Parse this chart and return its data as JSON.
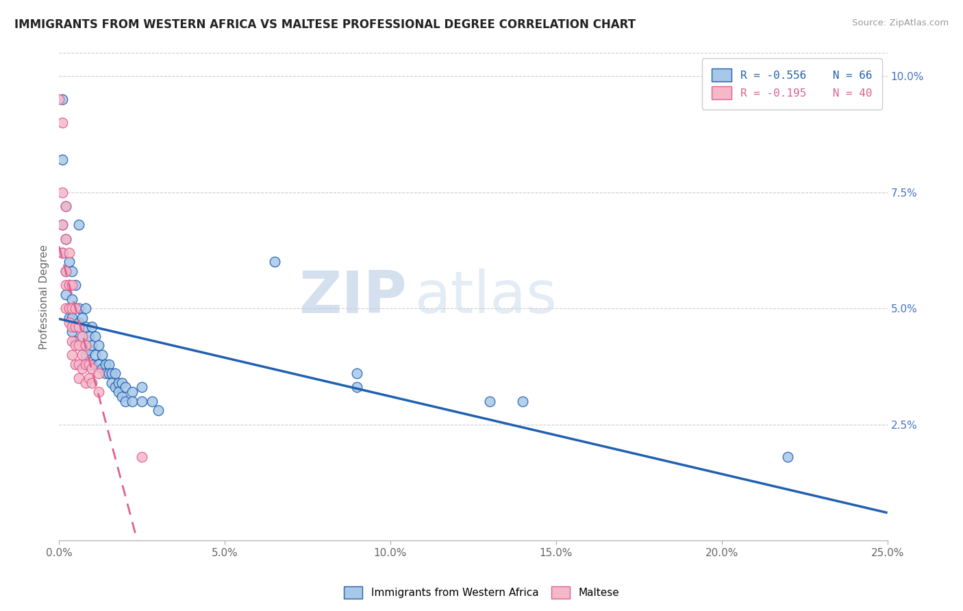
{
  "title": "IMMIGRANTS FROM WESTERN AFRICA VS MALTESE PROFESSIONAL DEGREE CORRELATION CHART",
  "source": "Source: ZipAtlas.com",
  "ylabel": "Professional Degree",
  "xlim": [
    0.0,
    0.25
  ],
  "ylim": [
    0.0,
    0.105
  ],
  "xticks": [
    0.0,
    0.05,
    0.1,
    0.15,
    0.2,
    0.25
  ],
  "xticklabels": [
    "0.0%",
    "5.0%",
    "10.0%",
    "15.0%",
    "20.0%",
    "25.0%"
  ],
  "yticks_right": [
    0.025,
    0.05,
    0.075,
    0.1
  ],
  "yticklabels_right": [
    "2.5%",
    "5.0%",
    "7.5%",
    "10.0%"
  ],
  "legend_blue_label": "Immigrants from Western Africa",
  "legend_pink_label": "Maltese",
  "R_blue": -0.556,
  "N_blue": 66,
  "R_pink": -0.195,
  "N_pink": 40,
  "blue_color": "#a8c8e8",
  "pink_color": "#f4b8c8",
  "blue_line_color": "#2060b0",
  "pink_line_color": "#e06090",
  "background_color": "#ffffff",
  "watermark_zip": "ZIP",
  "watermark_atlas": "atlas",
  "blue_scatter": [
    [
      0.001,
      0.095
    ],
    [
      0.001,
      0.082
    ],
    [
      0.001,
      0.068
    ],
    [
      0.001,
      0.062
    ],
    [
      0.002,
      0.072
    ],
    [
      0.002,
      0.065
    ],
    [
      0.002,
      0.058
    ],
    [
      0.002,
      0.053
    ],
    [
      0.003,
      0.06
    ],
    [
      0.003,
      0.055
    ],
    [
      0.003,
      0.05
    ],
    [
      0.003,
      0.048
    ],
    [
      0.004,
      0.058
    ],
    [
      0.004,
      0.052
    ],
    [
      0.004,
      0.048
    ],
    [
      0.004,
      0.045
    ],
    [
      0.005,
      0.055
    ],
    [
      0.005,
      0.05
    ],
    [
      0.005,
      0.046
    ],
    [
      0.005,
      0.043
    ],
    [
      0.006,
      0.068
    ],
    [
      0.006,
      0.05
    ],
    [
      0.006,
      0.047
    ],
    [
      0.007,
      0.048
    ],
    [
      0.007,
      0.044
    ],
    [
      0.008,
      0.05
    ],
    [
      0.008,
      0.046
    ],
    [
      0.008,
      0.042
    ],
    [
      0.008,
      0.04
    ],
    [
      0.009,
      0.044
    ],
    [
      0.009,
      0.041
    ],
    [
      0.01,
      0.046
    ],
    [
      0.01,
      0.042
    ],
    [
      0.01,
      0.038
    ],
    [
      0.011,
      0.044
    ],
    [
      0.011,
      0.04
    ],
    [
      0.012,
      0.042
    ],
    [
      0.012,
      0.038
    ],
    [
      0.013,
      0.04
    ],
    [
      0.013,
      0.037
    ],
    [
      0.014,
      0.038
    ],
    [
      0.014,
      0.036
    ],
    [
      0.015,
      0.038
    ],
    [
      0.015,
      0.036
    ],
    [
      0.016,
      0.036
    ],
    [
      0.016,
      0.034
    ],
    [
      0.017,
      0.036
    ],
    [
      0.017,
      0.033
    ],
    [
      0.018,
      0.034
    ],
    [
      0.018,
      0.032
    ],
    [
      0.019,
      0.034
    ],
    [
      0.019,
      0.031
    ],
    [
      0.02,
      0.033
    ],
    [
      0.02,
      0.03
    ],
    [
      0.022,
      0.032
    ],
    [
      0.022,
      0.03
    ],
    [
      0.025,
      0.033
    ],
    [
      0.025,
      0.03
    ],
    [
      0.028,
      0.03
    ],
    [
      0.03,
      0.028
    ],
    [
      0.065,
      0.06
    ],
    [
      0.09,
      0.036
    ],
    [
      0.09,
      0.033
    ],
    [
      0.13,
      0.03
    ],
    [
      0.14,
      0.03
    ],
    [
      0.22,
      0.018
    ]
  ],
  "pink_scatter": [
    [
      0.0,
      0.095
    ],
    [
      0.001,
      0.09
    ],
    [
      0.001,
      0.075
    ],
    [
      0.001,
      0.068
    ],
    [
      0.001,
      0.062
    ],
    [
      0.002,
      0.072
    ],
    [
      0.002,
      0.065
    ],
    [
      0.002,
      0.058
    ],
    [
      0.002,
      0.055
    ],
    [
      0.002,
      0.05
    ],
    [
      0.003,
      0.062
    ],
    [
      0.003,
      0.055
    ],
    [
      0.003,
      0.05
    ],
    [
      0.003,
      0.047
    ],
    [
      0.004,
      0.055
    ],
    [
      0.004,
      0.05
    ],
    [
      0.004,
      0.046
    ],
    [
      0.004,
      0.043
    ],
    [
      0.004,
      0.04
    ],
    [
      0.005,
      0.05
    ],
    [
      0.005,
      0.046
    ],
    [
      0.005,
      0.042
    ],
    [
      0.005,
      0.038
    ],
    [
      0.006,
      0.046
    ],
    [
      0.006,
      0.042
    ],
    [
      0.006,
      0.038
    ],
    [
      0.006,
      0.035
    ],
    [
      0.007,
      0.044
    ],
    [
      0.007,
      0.04
    ],
    [
      0.007,
      0.037
    ],
    [
      0.008,
      0.042
    ],
    [
      0.008,
      0.038
    ],
    [
      0.008,
      0.034
    ],
    [
      0.009,
      0.038
    ],
    [
      0.009,
      0.035
    ],
    [
      0.01,
      0.037
    ],
    [
      0.01,
      0.034
    ],
    [
      0.012,
      0.036
    ],
    [
      0.012,
      0.032
    ],
    [
      0.025,
      0.018
    ]
  ]
}
